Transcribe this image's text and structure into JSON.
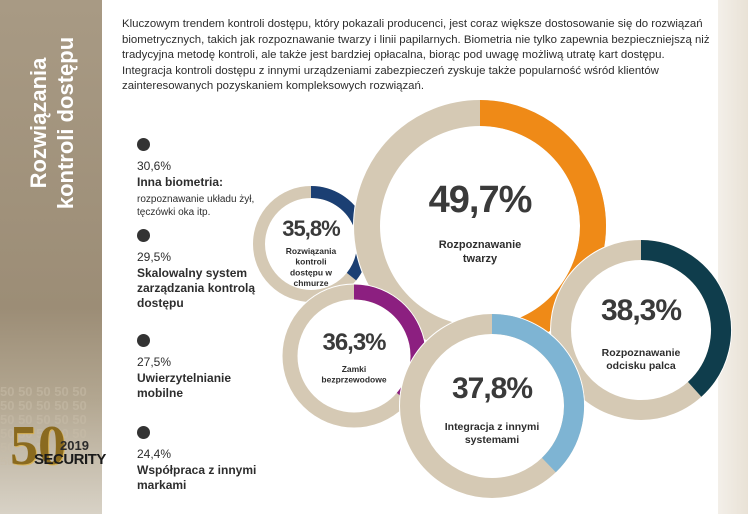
{
  "sidebar": {
    "title_line1": "Rozwiązania",
    "title_line2": "kontroli dostępu"
  },
  "logo": {
    "big": "50",
    "year": "2019",
    "word": "SECURITY"
  },
  "intro_text": "Kluczowym trendem kontroli dostępu, który pokazali producenci, jest coraz większe dostosowanie się do rozwiązań biometrycznych, takich jak rozpoznawanie twarzy i linii papilarnych. Biometria nie tylko zapewnia bezpieczniejszą niż tradycyjna metodę kontroli, ale także jest bardziej opłacalna, biorąc pod uwagę możliwą utratę kart dostępu. Integracja kontroli dostępu z innymi urządzeniami zabezpieczeń zyskuje także popularność wśród klientów zainteresowanych pozyskaniem kompleksowych rozwiązań.",
  "legend": [
    {
      "pct": "30,6%",
      "label": "Inna biometria:",
      "sub": "rozpoznawanie układu żył, tęczówki oka itp."
    },
    {
      "pct": "29,5%",
      "label": "Skalowalny system zarządzania kontrolą dostępu",
      "sub": ""
    },
    {
      "pct": "27,5%",
      "label": "Uwierzytelnianie mobilne",
      "sub": ""
    },
    {
      "pct": "24,4%",
      "label": "Współpraca z innymi markami",
      "sub": ""
    }
  ],
  "chart_data": {
    "type": "donut",
    "title": "Rozwiązania kontroli dostępu",
    "items": [
      {
        "label": "Rozpoznawanie twarzy",
        "value": 49.7,
        "display": "49,7%",
        "color": "#ef8a17"
      },
      {
        "label": "Rozpoznawanie odcisku palca",
        "value": 38.3,
        "display": "38,3%",
        "color": "#0f3d4c"
      },
      {
        "label": "Integracja z innymi systemami",
        "value": 37.8,
        "display": "37,8%",
        "color": "#7eb4d3"
      },
      {
        "label": "Zamki bezprzewodowe",
        "value": 36.3,
        "display": "36,3%",
        "color": "#8c1f80"
      },
      {
        "label": "Rozwiązania kontroli dostępu w chmurze",
        "value": 35.8,
        "display": "35,8%",
        "color": "#1b3f73"
      }
    ],
    "track_color": "#d5c9b4"
  }
}
